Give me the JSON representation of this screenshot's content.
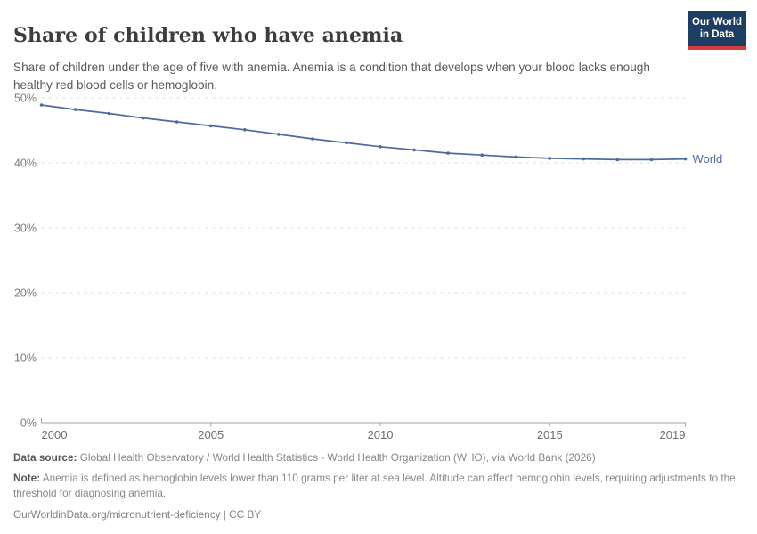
{
  "header": {
    "title": "Share of children who have anemia",
    "subtitle": "Share of children under the age of five with anemia. Anemia is a condition that develops when your blood lacks enough healthy red blood cells or hemoglobin.",
    "logo": {
      "line1": "Our World",
      "line2": "in Data",
      "bg_color": "#1d3d63",
      "accent_color": "#d73c3c"
    }
  },
  "chart_data": {
    "type": "line",
    "title": "Share of children who have anemia",
    "xlabel": "",
    "ylabel": "",
    "xlim": [
      2000,
      2019
    ],
    "ylim": [
      0,
      50
    ],
    "grid": "horizontal-dashed",
    "legend_position": "end-of-line",
    "x_ticks": [
      2000,
      2005,
      2010,
      2015,
      2019
    ],
    "y_ticks": [
      0,
      10,
      20,
      30,
      40,
      50
    ],
    "y_tick_suffix": "%",
    "x": [
      2000,
      2001,
      2002,
      2003,
      2004,
      2005,
      2006,
      2007,
      2008,
      2009,
      2010,
      2011,
      2012,
      2013,
      2014,
      2015,
      2016,
      2017,
      2018,
      2019
    ],
    "series": [
      {
        "name": "World",
        "color": "#4C6A9C",
        "values": [
          48.9,
          48.2,
          47.6,
          46.9,
          46.3,
          45.7,
          45.1,
          44.4,
          43.7,
          43.1,
          42.5,
          42.0,
          41.5,
          41.2,
          40.9,
          40.7,
          40.6,
          40.5,
          40.5,
          40.6
        ]
      }
    ]
  },
  "footer": {
    "data_source_label": "Data source:",
    "data_source_text": " Global Health Observatory / World Health Statistics - World Health Organization (WHO), via World Bank (2026)",
    "note_label": "Note:",
    "note_text": " Anemia is defined as hemoglobin levels lower than 110 grams per liter at sea level. Altitude can affect hemoglobin levels, requiring adjustments to the threshold for diagnosing anemia.",
    "url": "OurWorldinData.org/micronutrient-deficiency | CC BY"
  }
}
